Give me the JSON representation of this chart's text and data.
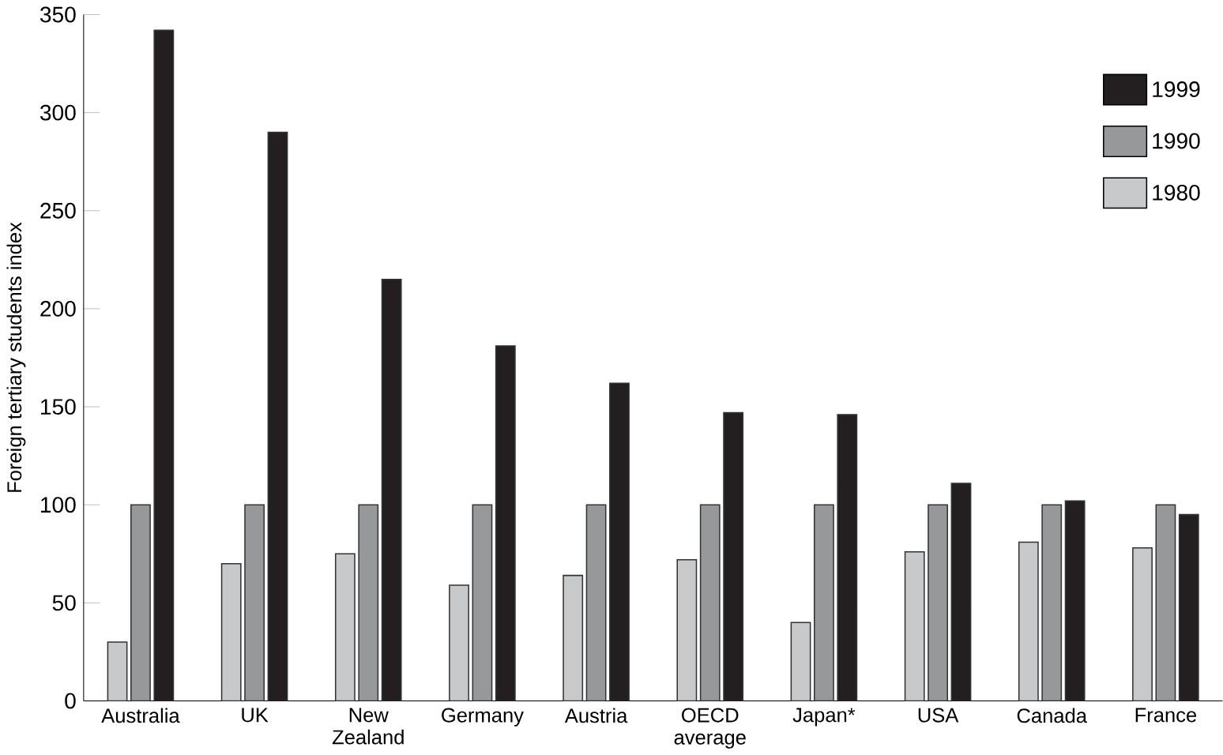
{
  "chart_data": {
    "type": "bar",
    "ylabel": "Foreign tertiary students index",
    "categories": [
      "Australia",
      "UK",
      "New Zealand",
      "Germany",
      "Austria",
      "OECD average",
      "Japan*",
      "USA",
      "Canada",
      "France"
    ],
    "series": [
      {
        "name": "1980",
        "color": "#c8c9cb",
        "values": [
          30,
          70,
          75,
          59,
          64,
          72,
          40,
          76,
          81,
          78
        ]
      },
      {
        "name": "1990",
        "color": "#97989a",
        "values": [
          100,
          100,
          100,
          100,
          100,
          100,
          100,
          100,
          100,
          100
        ]
      },
      {
        "name": "1999",
        "color": "#231f20",
        "values": [
          342,
          290,
          215,
          181,
          162,
          147,
          146,
          111,
          102,
          95
        ]
      }
    ],
    "ylim": [
      0,
      350
    ],
    "yticks": [
      0,
      50,
      100,
      150,
      200,
      250,
      300,
      350
    ],
    "grid": false,
    "legend": "top right"
  }
}
